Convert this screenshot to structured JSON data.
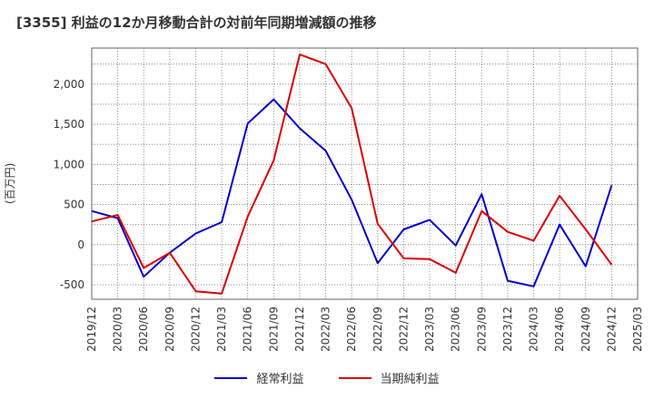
{
  "chart_data": {
    "type": "line",
    "title": "[3355]  利益の12か月移動合計の対前年同期増減額の推移",
    "ylabel": "(百万円)",
    "xlabel": "",
    "ylim": [
      -680,
      2450
    ],
    "yticks": [
      -500,
      0,
      500,
      1000,
      1500,
      2000
    ],
    "ytick_labels": [
      "-500",
      "0",
      "500",
      "1,000",
      "1,500",
      "2,000"
    ],
    "categories": [
      "2019/12",
      "2020/03",
      "2020/06",
      "2020/09",
      "2020/12",
      "2021/03",
      "2021/06",
      "2021/09",
      "2021/12",
      "2022/03",
      "2022/06",
      "2022/09",
      "2022/12",
      "2023/03",
      "2023/06",
      "2023/09",
      "2023/12",
      "2024/03",
      "2024/06",
      "2024/09",
      "2024/12",
      "2025/03"
    ],
    "grid": true,
    "legend_position": "bottom",
    "series": [
      {
        "name": "経常利益",
        "color": "#0000cc",
        "values": [
          420,
          330,
          -400,
          -100,
          140,
          280,
          1510,
          1810,
          1450,
          1170,
          560,
          -230,
          190,
          310,
          -10,
          630,
          -450,
          -520,
          250,
          -270,
          740,
          null
        ]
      },
      {
        "name": "当期純利益",
        "color": "#dd0000",
        "values": [
          290,
          370,
          -290,
          -100,
          -580,
          -610,
          350,
          1050,
          2370,
          2250,
          1700,
          260,
          -170,
          -180,
          -350,
          420,
          160,
          50,
          610,
          190,
          -250,
          null
        ]
      }
    ]
  }
}
